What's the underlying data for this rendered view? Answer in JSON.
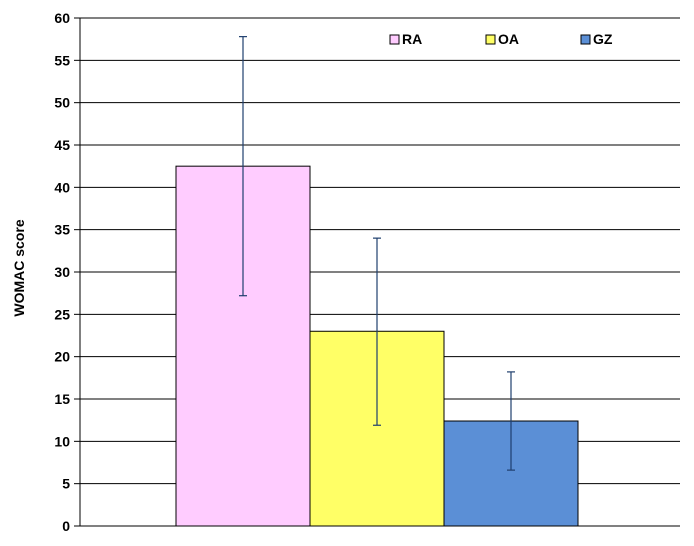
{
  "chart_data": {
    "type": "bar",
    "title": "",
    "xlabel": "",
    "ylabel": "WOMAC score",
    "ylim": [
      0,
      60
    ],
    "yticks": [
      0,
      5,
      10,
      15,
      20,
      25,
      30,
      35,
      40,
      45,
      50,
      55,
      60
    ],
    "grid": true,
    "legend_position": "top-right",
    "series": [
      {
        "name": "RA",
        "value": 42.5,
        "error_low": 27.2,
        "error_high": 57.8,
        "color": "#ffccff"
      },
      {
        "name": "OA",
        "value": 23.0,
        "error_low": 11.9,
        "error_high": 34.0,
        "color": "#ffff66"
      },
      {
        "name": "GZ",
        "value": 12.4,
        "error_low": 6.6,
        "error_high": 18.2,
        "color": "#5b8fd6"
      }
    ],
    "error_bar_color": "#1f3f6e"
  }
}
